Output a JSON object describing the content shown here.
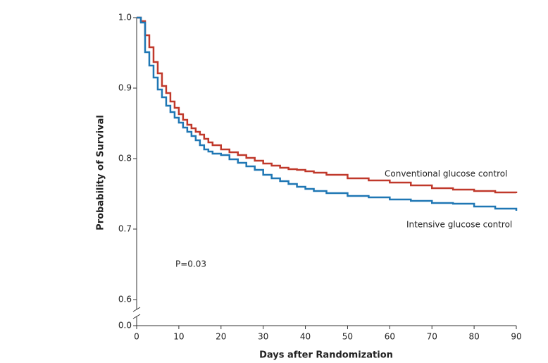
{
  "chart_data": {
    "type": "step",
    "x_label": "Days after Randomization",
    "y_label": "Probability of Survival",
    "annotations": [
      "Conventional glucose control",
      "Intensive glucose control",
      "P=0.03"
    ],
    "x": [
      0,
      1,
      2,
      3,
      4,
      5,
      6,
      7,
      8,
      9,
      10,
      11,
      12,
      13,
      14,
      15,
      16,
      17,
      18,
      20,
      22,
      24,
      26,
      28,
      30,
      32,
      34,
      36,
      38,
      40,
      42,
      45,
      50,
      55,
      60,
      65,
      70,
      75,
      80,
      85,
      90
    ],
    "series": [
      {
        "name": "Conventional glucose control",
        "color": "#c0392b",
        "values": [
          1.0,
          0.995,
          0.975,
          0.958,
          0.937,
          0.921,
          0.903,
          0.893,
          0.881,
          0.872,
          0.863,
          0.855,
          0.848,
          0.843,
          0.838,
          0.834,
          0.828,
          0.823,
          0.819,
          0.813,
          0.809,
          0.805,
          0.801,
          0.797,
          0.793,
          0.79,
          0.787,
          0.785,
          0.784,
          0.782,
          0.78,
          0.777,
          0.772,
          0.769,
          0.766,
          0.762,
          0.758,
          0.756,
          0.754,
          0.752,
          0.751
        ]
      },
      {
        "name": "Intensive glucose control",
        "color": "#1f77b4",
        "values": [
          1.0,
          0.993,
          0.951,
          0.932,
          0.915,
          0.898,
          0.887,
          0.875,
          0.866,
          0.858,
          0.851,
          0.844,
          0.838,
          0.832,
          0.826,
          0.819,
          0.813,
          0.81,
          0.807,
          0.805,
          0.799,
          0.794,
          0.789,
          0.784,
          0.777,
          0.772,
          0.768,
          0.764,
          0.76,
          0.757,
          0.754,
          0.751,
          0.747,
          0.745,
          0.742,
          0.74,
          0.737,
          0.736,
          0.732,
          0.729,
          0.726
        ]
      }
    ],
    "xlim": [
      0,
      90
    ],
    "xticks": [
      0,
      10,
      20,
      30,
      40,
      50,
      60,
      70,
      80,
      90
    ],
    "ylim": [
      0.6,
      1.0
    ],
    "axis_break": true,
    "yticks": [
      {
        "value": 0,
        "label": "0.0"
      },
      0.6,
      0.7,
      0.8,
      0.9,
      {
        "value": 1,
        "label": "1.0"
      }
    ]
  }
}
